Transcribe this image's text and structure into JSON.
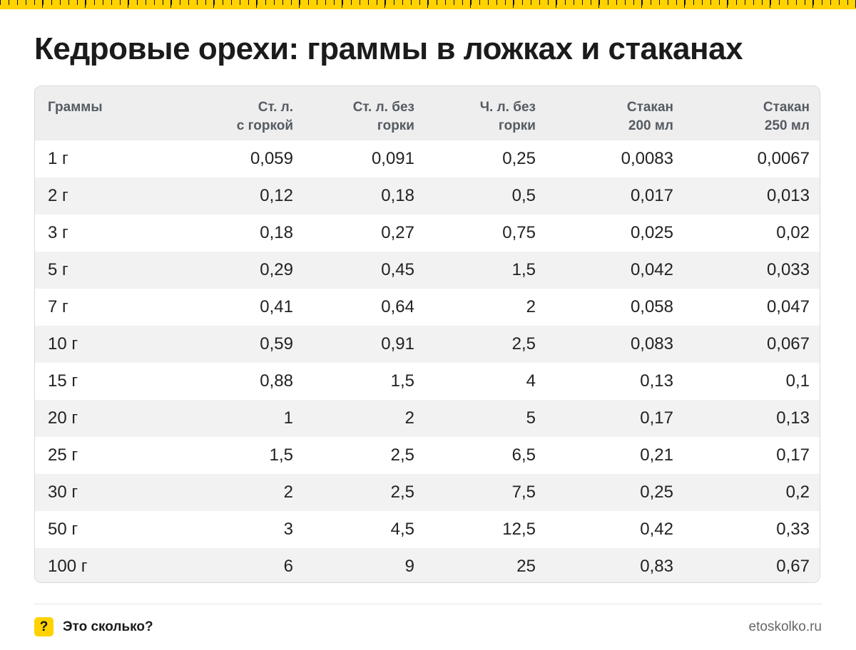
{
  "title": "Кедровые орехи: граммы в ложках и стаканах",
  "table": {
    "headers": [
      [
        "Граммы"
      ],
      [
        "Ст. л.",
        "с горкой"
      ],
      [
        "Ст. л. без",
        "горки"
      ],
      [
        "Ч. л. без",
        "горки"
      ],
      [
        "Стакан",
        "200 мл"
      ],
      [
        "Стакан",
        "250 мл"
      ]
    ],
    "rows": [
      [
        "1 г",
        "0,059",
        "0,091",
        "0,25",
        "0,0083",
        "0,0067"
      ],
      [
        "2 г",
        "0,12",
        "0,18",
        "0,5",
        "0,017",
        "0,013"
      ],
      [
        "3 г",
        "0,18",
        "0,27",
        "0,75",
        "0,025",
        "0,02"
      ],
      [
        "5 г",
        "0,29",
        "0,45",
        "1,5",
        "0,042",
        "0,033"
      ],
      [
        "7 г",
        "0,41",
        "0,64",
        "2",
        "0,058",
        "0,047"
      ],
      [
        "10 г",
        "0,59",
        "0,91",
        "2,5",
        "0,083",
        "0,067"
      ],
      [
        "15 г",
        "0,88",
        "1,5",
        "4",
        "0,13",
        "0,1"
      ],
      [
        "20 г",
        "1",
        "2",
        "5",
        "0,17",
        "0,13"
      ],
      [
        "25 г",
        "1,5",
        "2,5",
        "6,5",
        "0,21",
        "0,17"
      ],
      [
        "30 г",
        "2",
        "2,5",
        "7,5",
        "0,25",
        "0,2"
      ],
      [
        "50 г",
        "3",
        "4,5",
        "12,5",
        "0,42",
        "0,33"
      ],
      [
        "100 г",
        "6",
        "9",
        "25",
        "0,83",
        "0,67"
      ]
    ]
  },
  "footer": {
    "icon_glyph": "?",
    "brand": "Это сколько?",
    "site": "etoskolko.ru"
  },
  "colors": {
    "accent": "#ffd200",
    "header_bg": "#eeeeee",
    "stripe_bg": "#f2f2f2"
  }
}
